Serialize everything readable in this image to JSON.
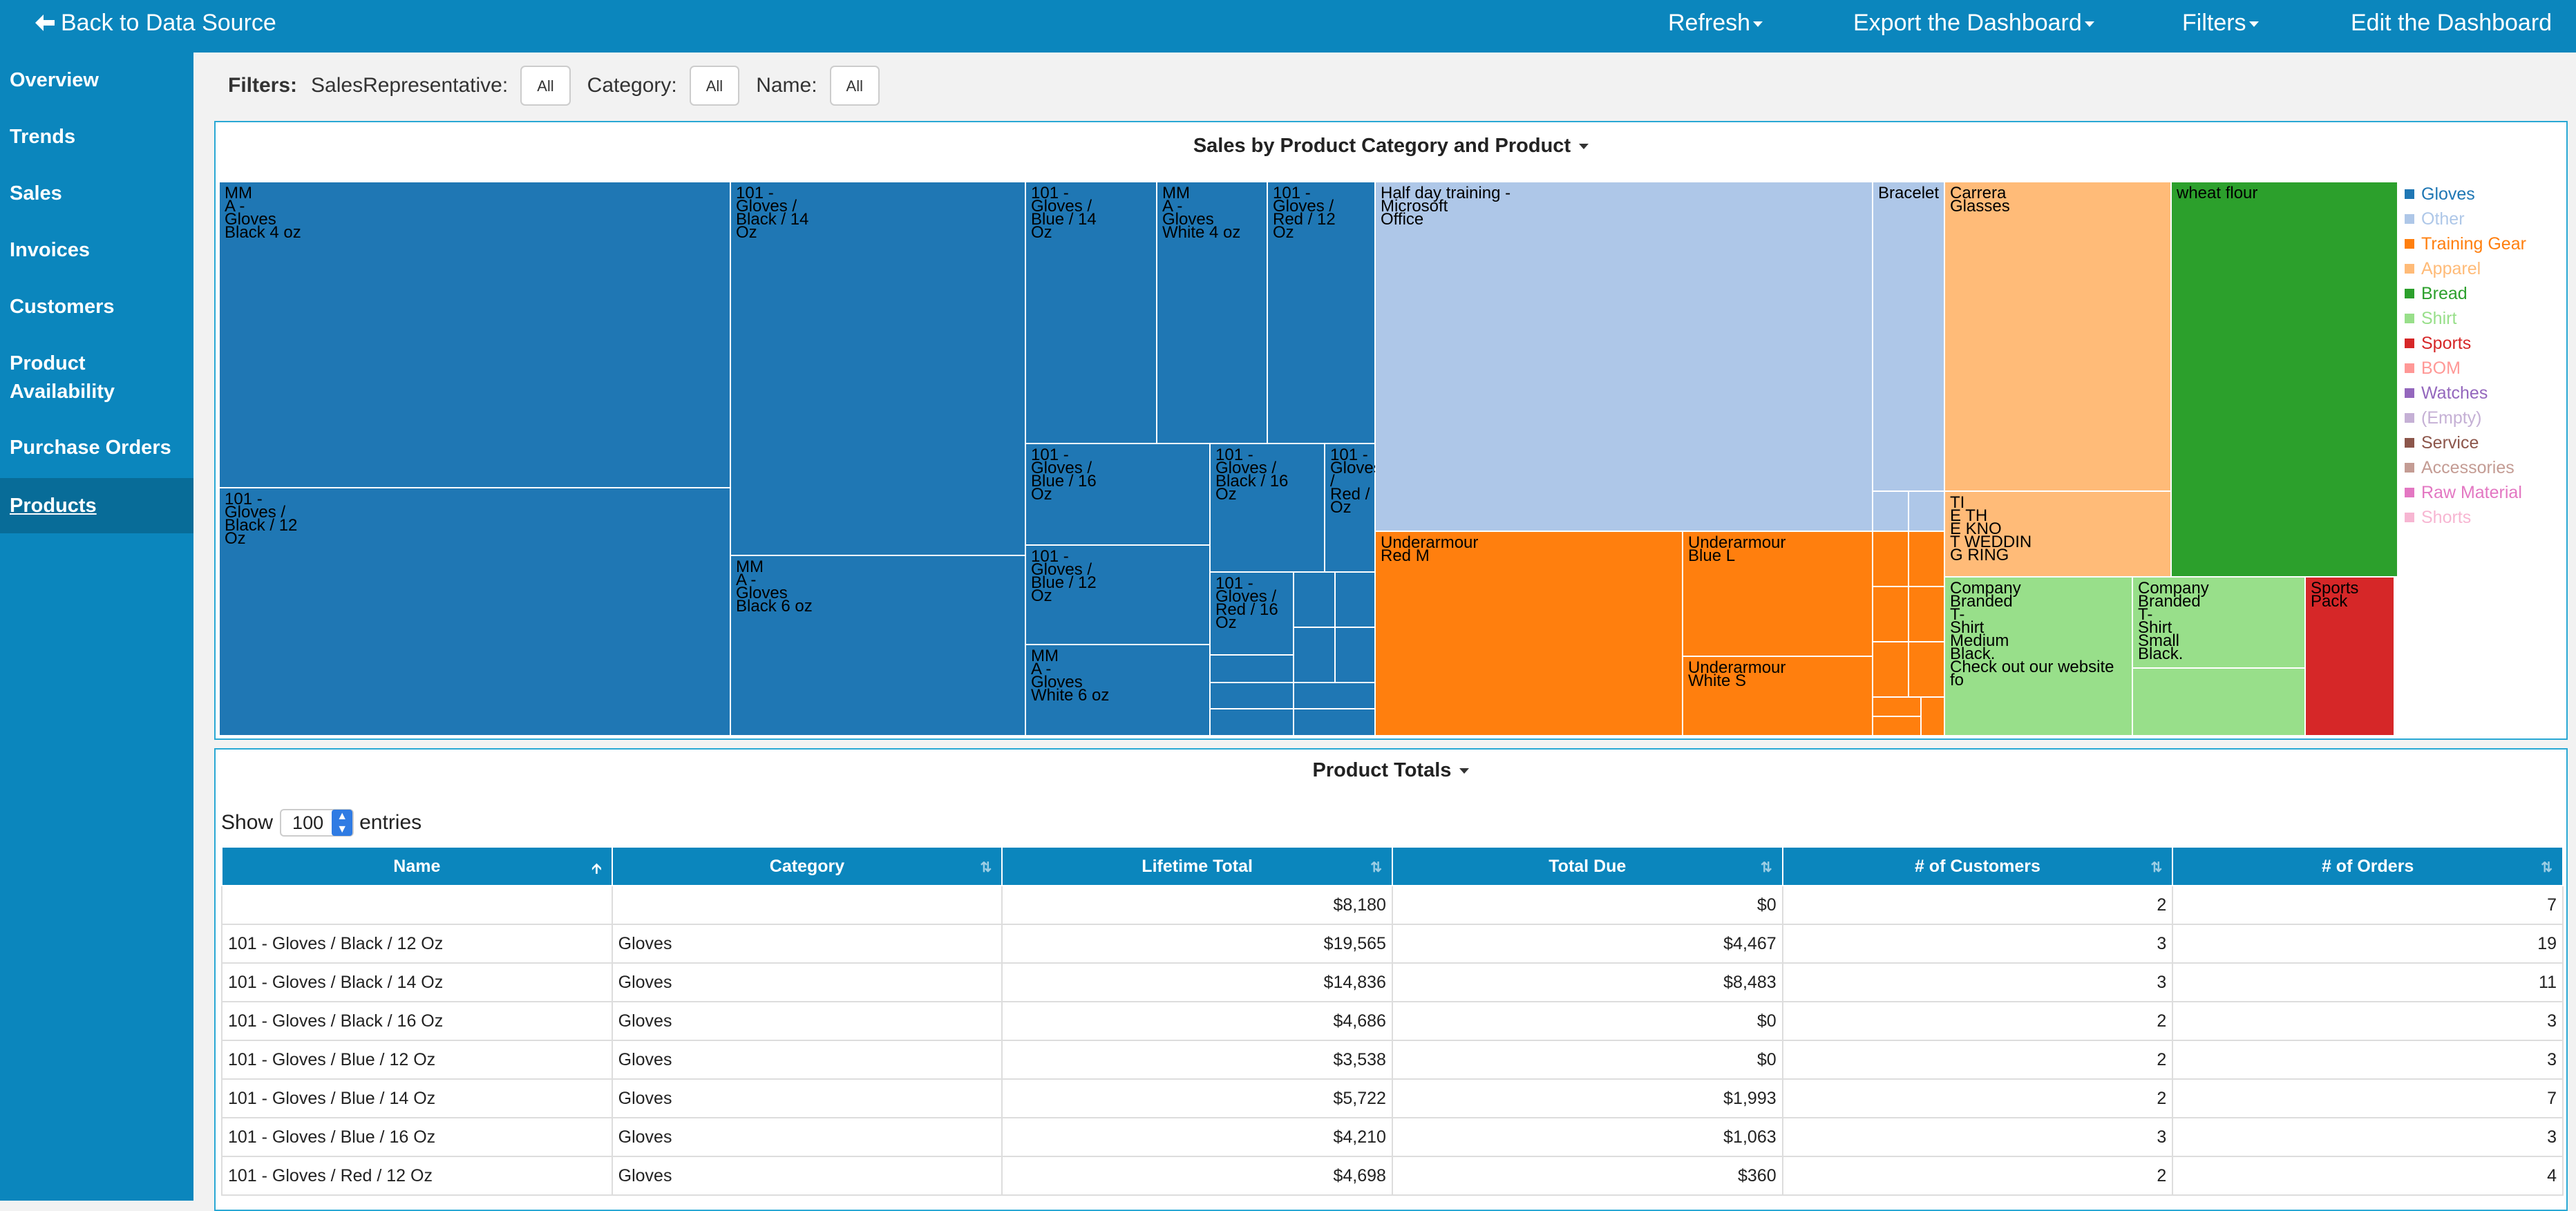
{
  "topbar": {
    "back": "Back to Data Source",
    "refresh": "Refresh",
    "export": "Export the Dashboard",
    "filters": "Filters",
    "edit": "Edit the Dashboard"
  },
  "sidebar": {
    "items": [
      {
        "label": "Overview"
      },
      {
        "label": "Trends"
      },
      {
        "label": "Sales"
      },
      {
        "label": "Invoices"
      },
      {
        "label": "Customers"
      },
      {
        "label": "Product\nAvailability"
      },
      {
        "label": "Purchase Orders"
      },
      {
        "label": "Products",
        "active": true
      }
    ]
  },
  "filters": {
    "title": "Filters:",
    "items": [
      {
        "label": "SalesRepresentative:",
        "value": "All"
      },
      {
        "label": "Category:",
        "value": "All"
      },
      {
        "label": "Name:",
        "value": "All"
      }
    ]
  },
  "treemap": {
    "title": "Sales by Product Category and Product",
    "legend": [
      {
        "label": "Gloves",
        "color": "#1f77b4"
      },
      {
        "label": "Other",
        "color": "#aec7e8"
      },
      {
        "label": "Training Gear",
        "color": "#ff7f0e"
      },
      {
        "label": "Apparel",
        "color": "#ffbb78"
      },
      {
        "label": "Bread",
        "color": "#2ca02c"
      },
      {
        "label": "Shirt",
        "color": "#98df8a"
      },
      {
        "label": "Sports",
        "color": "#d62728"
      },
      {
        "label": "BOM",
        "color": "#ff9896"
      },
      {
        "label": "Watches",
        "color": "#9467bd"
      },
      {
        "label": "(Empty)",
        "color": "#c5b0d5"
      },
      {
        "label": "Service",
        "color": "#8c564b"
      },
      {
        "label": "Accessories",
        "color": "#c49c94"
      },
      {
        "label": "Raw Material",
        "color": "#e377c2"
      },
      {
        "label": "Shorts",
        "color": "#f7b6d2"
      }
    ],
    "labels": {
      "mm_black4": "MM\nA -\nGloves\nBlack 4 oz",
      "g101_black12": "101 -\nGloves /\nBlack / 12\nOz",
      "g101_black14": "101 -\nGloves /\nBlack / 14\nOz",
      "mm_black6": "MM\nA -\nGloves\nBlack 6 oz",
      "g101_blue14": "101 -\nGloves /\nBlue / 14\nOz",
      "mm_white4": "MM\nA -\nGloves\nWhite 4 oz",
      "g101_red12": "101 -\nGloves /\nRed / 12\nOz",
      "g101_blue16": "101 -\nGloves /\nBlue / 16\nOz",
      "g101_black16": "101 -\nGloves /\nBlack / 16\nOz",
      "g101_red_x": "101 -\nGloves /\nRed /\nOz",
      "g101_blue12": "101 -\nGloves /\nBlue / 12\nOz",
      "g101_red16": "101 -\nGloves /\nRed / 16\nOz",
      "mm_white6": "MM\nA -\nGloves\nWhite 6 oz",
      "halfday": "Half day training -\nMicrosoft\nOffice",
      "bracelet": "Bracelet",
      "carrera": "Carrera\nGlasses",
      "wheat": "wheat flour",
      "ua_redm": "Underarmour\nRed M",
      "ua_bluel": "Underarmour\nBlue L",
      "ua_whites": "Underarmour\nWhite S",
      "wedding": "TI\nE TH\nE KNO\nT WEDDIN\nG RING",
      "shirt_m": "Company\nBranded\nT-\nShirt\nMedium\nBlack.\nCheck out our website fo",
      "shirt_s": "Company\nBranded\nT-\nShirt\nSmall\nBlack.",
      "sports_pack": "Sports\nPack"
    }
  },
  "table": {
    "title": "Product Totals",
    "show_prefix": "Show",
    "show_value": "100",
    "show_suffix": "entries",
    "columns": [
      "Name",
      "Category",
      "Lifetime Total",
      "Total Due",
      "# of Customers",
      "# of Orders"
    ],
    "rows": [
      [
        "",
        "",
        "$8,180",
        "$0",
        "2",
        "7"
      ],
      [
        "101 - Gloves / Black / 12 Oz",
        "Gloves",
        "$19,565",
        "$4,467",
        "3",
        "19"
      ],
      [
        "101 - Gloves / Black / 14 Oz",
        "Gloves",
        "$14,836",
        "$8,483",
        "3",
        "11"
      ],
      [
        "101 - Gloves / Black / 16 Oz",
        "Gloves",
        "$4,686",
        "$0",
        "2",
        "3"
      ],
      [
        "101 - Gloves / Blue / 12 Oz",
        "Gloves",
        "$3,538",
        "$0",
        "2",
        "3"
      ],
      [
        "101 - Gloves / Blue / 14 Oz",
        "Gloves",
        "$5,722",
        "$1,993",
        "2",
        "7"
      ],
      [
        "101 - Gloves / Blue / 16 Oz",
        "Gloves",
        "$4,210",
        "$1,063",
        "3",
        "3"
      ],
      [
        "101 - Gloves / Red / 12 Oz",
        "Gloves",
        "$4,698",
        "$360",
        "2",
        "4"
      ]
    ]
  }
}
